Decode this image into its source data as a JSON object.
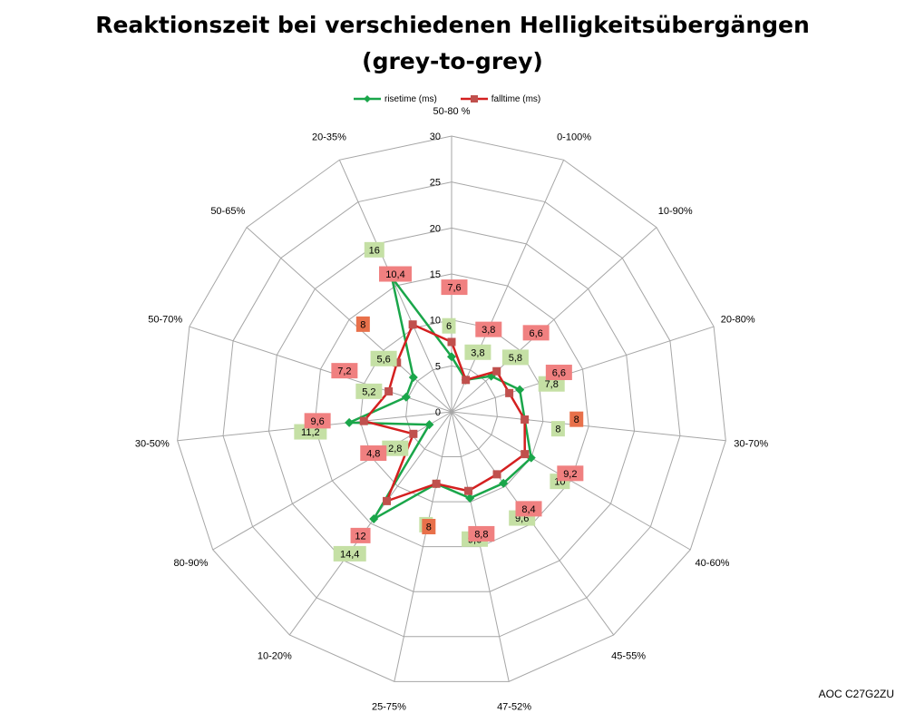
{
  "title_line1": "Reaktionszeit bei verschiedenen Helligkeitsübergängen",
  "title_line2": "(grey-to-grey)",
  "footer": "AOC C27G2ZU",
  "colors": {
    "rise": "#1aa64a",
    "fall": "#d42020",
    "grid": "#a6a6a6",
    "rise_label_bg": "#c5e0a5",
    "fall_label_bg": "#f08080",
    "fall_label_bg_dark": "#e8704a"
  },
  "chart_data": {
    "type": "radar",
    "categories": [
      "50-80 %",
      "0-100%",
      "10-90%",
      "20-80%",
      "30-70%",
      "40-60%",
      "45-55%",
      "47-52%",
      "25-75%",
      "10-20%",
      "80-90%",
      "30-50%",
      "50-70%",
      "50-65%",
      "20-35%"
    ],
    "r_ticks": [
      "0",
      "5",
      "10",
      "15",
      "20",
      "25",
      "30"
    ],
    "rlim": [
      0,
      30
    ],
    "grid": true,
    "legend_position": "top",
    "series": [
      {
        "name": "risetime (ms)",
        "values": [
          6,
          3.8,
          5.8,
          7.8,
          8,
          10,
          9.6,
          9.6,
          8,
          14.4,
          2.8,
          11.2,
          5.2,
          5.6,
          16
        ],
        "labels": [
          "6",
          "3,8",
          "5,8",
          "7,8",
          "8",
          "10",
          "9,6",
          "9,6",
          "8",
          "14,4",
          "2,8",
          "11,2",
          "5,2",
          "5,6",
          "16"
        ]
      },
      {
        "name": "falltime (ms)",
        "values": [
          7.6,
          3.8,
          6.6,
          6.6,
          8,
          9.2,
          8.4,
          8.8,
          8,
          12,
          4.8,
          9.6,
          7.2,
          8,
          10.4
        ],
        "labels": [
          "7,6",
          "3,8",
          "6,6",
          "6,6",
          "8",
          "9,2",
          "8,4",
          "8,8",
          "8",
          "12",
          "4,8",
          "9,6",
          "7,2",
          "8",
          "10,4"
        ]
      }
    ]
  }
}
